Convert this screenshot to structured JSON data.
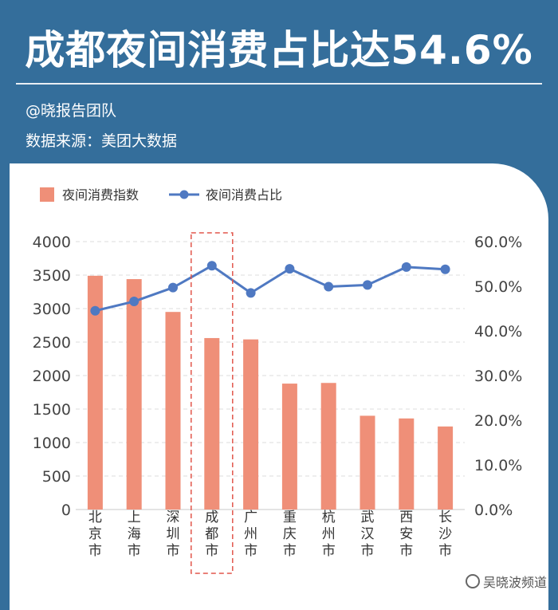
{
  "title": "成都夜间消费占比达54.6%",
  "author": "@晓报告团队",
  "source": "数据来源：美团大数据",
  "watermark": "吴晓波频道",
  "colors": {
    "background": "#346e9b",
    "bar": "#ef8f78",
    "line": "#4f79c2",
    "highlight_box": "#e2574c"
  },
  "chart_data": {
    "type": "bar+line",
    "categories": [
      "北京市",
      "上海市",
      "深圳市",
      "成都市",
      "广州市",
      "重庆市",
      "杭州市",
      "武汉市",
      "西安市",
      "长沙市"
    ],
    "highlight_category": "成都市",
    "series": [
      {
        "name": "夜间消费指数",
        "type": "bar",
        "axis": "left",
        "values": [
          3490,
          3440,
          2950,
          2560,
          2540,
          1880,
          1890,
          1400,
          1360,
          1240
        ]
      },
      {
        "name": "夜间消费占比",
        "type": "line",
        "axis": "right",
        "values": [
          44.5,
          46.6,
          49.7,
          54.6,
          48.5,
          53.9,
          49.9,
          50.3,
          54.3,
          53.8
        ]
      }
    ],
    "left_axis": {
      "min": 0,
      "max": 4000,
      "ticks": [
        "0",
        "500",
        "1000",
        "1500",
        "2000",
        "2500",
        "3000",
        "3500",
        "4000"
      ]
    },
    "right_axis": {
      "min": 0,
      "max": 60,
      "ticks": [
        "0.0%",
        "10.0%",
        "20.0%",
        "30.0%",
        "40.0%",
        "50.0%",
        "60.0%"
      ]
    },
    "legend": [
      "夜间消费指数",
      "夜间消费占比"
    ],
    "legend_position": "top-left",
    "grid": true
  }
}
